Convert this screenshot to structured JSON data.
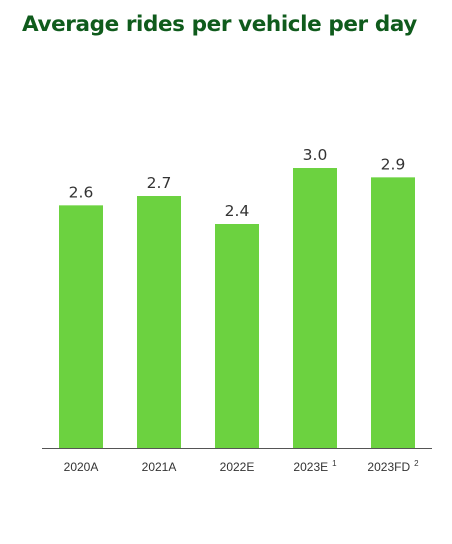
{
  "colors": {
    "title": "#0f5b1c",
    "bar": "#6cd240",
    "axis": "#555555"
  },
  "chart_data": {
    "type": "bar",
    "title": "Average rides per vehicle per day",
    "xlabel": "",
    "ylabel": "",
    "ylim": [
      0,
      3.5
    ],
    "grid": false,
    "legend": "none",
    "categories": [
      "2020A",
      "2021A",
      "2022E",
      "2023E",
      "2023FD"
    ],
    "footnote_marks": [
      "",
      "",
      "",
      "1",
      "2"
    ],
    "values": [
      2.6,
      2.7,
      2.4,
      3.0,
      2.9
    ],
    "value_labels": [
      "2.6",
      "2.7",
      "2.4",
      "3.0",
      "2.9"
    ]
  }
}
